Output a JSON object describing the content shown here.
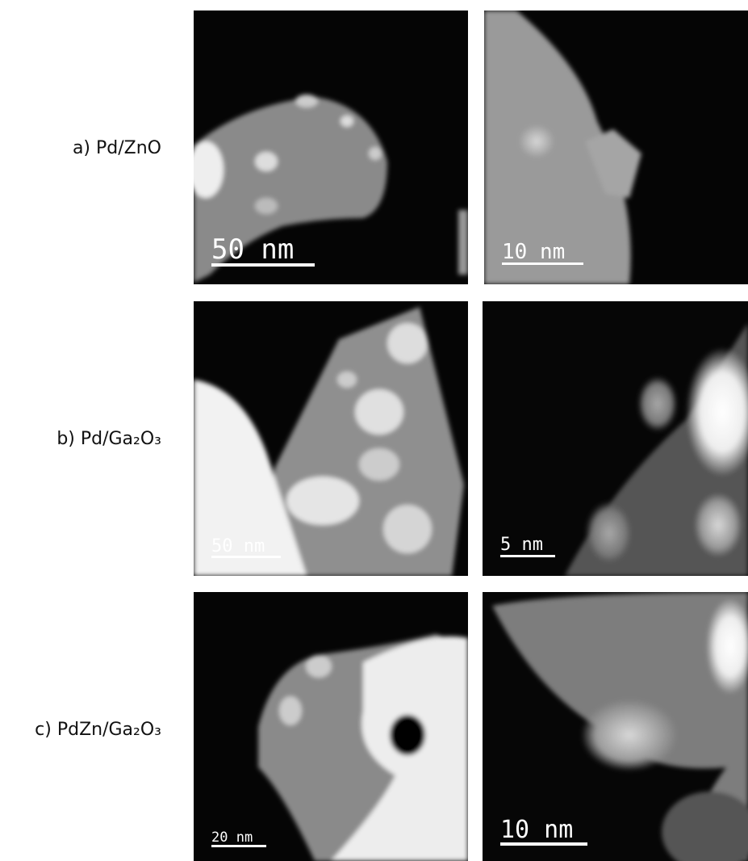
{
  "rows": [
    {
      "label": "a) Pd/ZnO",
      "scale_bars": [
        "50 nm",
        "10 nm"
      ]
    },
    {
      "label": "b) Pd/Ga₂O₃",
      "scale_bars": [
        "50 nm",
        "5 nm"
      ]
    },
    {
      "label": "c) PdZn/Ga₂O₃",
      "scale_bars": [
        "20 nm",
        "10 nm"
      ]
    }
  ]
}
